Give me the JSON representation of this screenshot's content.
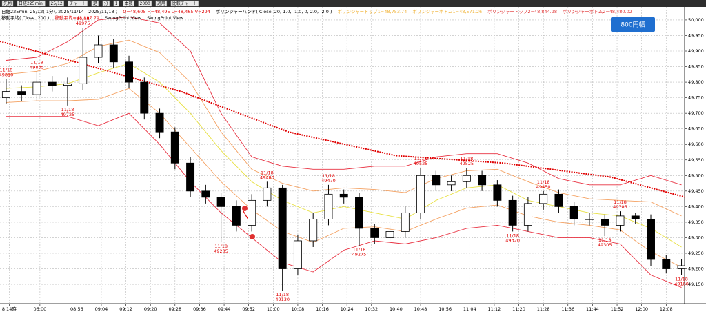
{
  "toolbar": {
    "items": [
      "先物",
      "日経225mini",
      "25/12",
      "チャート",
      "足",
      "分",
      "1",
      "本数",
      "2000",
      "適用",
      "比較チャート"
    ]
  },
  "header": {
    "line1": [
      {
        "text": "日経225mini 25/12( 1分), 2025/11/14 - 2025/11/18 )",
        "color": "#000000"
      },
      {
        "text": "O=48,605 H=48,495 L=48,465 V=294",
        "color": "#e00000"
      },
      {
        "text": "ボリンジャーバンド( Close, 20, 1.0, -1.0, 0, 2.0, -2.0 )",
        "color": "#000000"
      },
      {
        "text": "ボリンジャートップ1=48,753.74",
        "color": "#f0b030"
      },
      {
        "text": "ボリンジャーボトム1=48,571.26",
        "color": "#f0b030"
      },
      {
        "text": "ボリンジャートップ2=48,844.98",
        "color": "#e03030"
      },
      {
        "text": "ボリンジャーボトム2=48,480.02",
        "color": "#e03030"
      }
    ],
    "line2": [
      {
        "text": "移動平均( Close, 200 )",
        "color": "#000000"
      },
      {
        "text": "移動平均=48,887.79",
        "color": "#e00000"
      },
      {
        "text": "SwingPoint View",
        "color": "#000000"
      },
      {
        "text": "SwingPoint View",
        "color": "#000000"
      }
    ]
  },
  "button": "800円幅",
  "chart_data": {
    "type": "candlestick",
    "x": [
      -12,
      -7,
      -2,
      3,
      8,
      13,
      18,
      23,
      28,
      33,
      38,
      43,
      48,
      53,
      58,
      63,
      68,
      73,
      78,
      83,
      88,
      93,
      98,
      103,
      108,
      113,
      118,
      123,
      128,
      133,
      138,
      143,
      148,
      153,
      158,
      163,
      168,
      173,
      178,
      183,
      188,
      193,
      198,
      203,
      208
    ],
    "open": [
      49750,
      49770,
      49760,
      49800,
      49790,
      49795,
      49880,
      49920,
      49865,
      49800,
      49700,
      49640,
      49540,
      49450,
      49430,
      49400,
      49340,
      49420,
      49460,
      49200,
      49290,
      49360,
      49440,
      49430,
      49330,
      49300,
      49320,
      49380,
      49500,
      49470,
      49480,
      49500,
      49470,
      49420,
      49340,
      49410,
      49440,
      49400,
      49360,
      49360,
      49340,
      49370,
      49360,
      49230,
      49200
    ],
    "high": [
      49810,
      49790,
      49835,
      49820,
      49815,
      49975,
      49950,
      49940,
      49885,
      49815,
      49715,
      49655,
      49560,
      49470,
      49445,
      49420,
      49440,
      49480,
      49470,
      49310,
      49380,
      49470,
      49455,
      49445,
      49345,
      49340,
      49400,
      49525,
      49515,
      49500,
      49525,
      49515,
      49485,
      49435,
      49430,
      49450,
      49455,
      49415,
      49380,
      49375,
      49385,
      49380,
      49375,
      49245,
      49230
    ],
    "low": [
      49730,
      49740,
      49740,
      49770,
      49725,
      49775,
      49860,
      49845,
      49780,
      49680,
      49620,
      49520,
      49430,
      49410,
      49285,
      49320,
      49320,
      49400,
      49130,
      49180,
      49270,
      49340,
      49410,
      49275,
      49280,
      49290,
      49300,
      49360,
      49450,
      49450,
      49460,
      49450,
      49400,
      49320,
      49320,
      49390,
      49380,
      49340,
      49340,
      49305,
      49320,
      49345,
      49210,
      49185,
      49180
    ],
    "close": [
      49770,
      49760,
      49800,
      49790,
      49795,
      49880,
      49920,
      49865,
      49800,
      49700,
      49640,
      49540,
      49450,
      49430,
      49400,
      49340,
      49420,
      49460,
      49200,
      49290,
      49360,
      49440,
      49430,
      49330,
      49300,
      49320,
      49380,
      49500,
      49470,
      49480,
      49500,
      49470,
      49420,
      49340,
      49410,
      49440,
      49400,
      49360,
      49360,
      49340,
      49370,
      49360,
      49230,
      49200,
      49210
    ],
    "up_color": "#ffffff",
    "down_color": "#000000",
    "lines": [
      {
        "color": "#e83040",
        "style": "solid",
        "x": [
          -12,
          -2,
          8,
          18,
          28,
          38,
          48,
          58,
          68,
          78,
          88,
          98,
          108,
          118,
          128,
          138,
          148,
          158,
          168,
          178,
          188,
          198,
          208
        ],
        "values": [
          49870,
          49880,
          49930,
          50000,
          50010,
          49990,
          49900,
          49700,
          49560,
          49530,
          49520,
          49520,
          49530,
          49530,
          49560,
          49570,
          49570,
          49540,
          49490,
          49470,
          49470,
          49500,
          49470
        ]
      },
      {
        "color": "#f4a060",
        "style": "solid",
        "x": [
          -12,
          -2,
          8,
          18,
          28,
          38,
          48,
          58,
          68,
          78,
          88,
          98,
          108,
          118,
          128,
          138,
          148,
          158,
          168,
          178,
          188,
          198,
          208
        ],
        "values": [
          49825,
          49835,
          49860,
          49915,
          49935,
          49895,
          49800,
          49640,
          49520,
          49475,
          49450,
          49460,
          49455,
          49445,
          49490,
          49515,
          49520,
          49480,
          49445,
          49425,
          49420,
          49415,
          49370
        ]
      },
      {
        "color": "#e8e040",
        "style": "solid",
        "x": [
          -12,
          -2,
          8,
          18,
          28,
          38,
          48,
          58,
          68,
          78,
          88,
          98,
          108,
          118,
          128,
          138,
          148,
          158,
          168,
          178,
          188,
          198,
          208
        ],
        "values": [
          49780,
          49785,
          49795,
          49830,
          49860,
          49800,
          49700,
          49580,
          49480,
          49420,
          49380,
          49400,
          49380,
          49360,
          49420,
          49460,
          49470,
          49420,
          49400,
          49380,
          49370,
          49330,
          49270
        ]
      },
      {
        "color": "#f4a060",
        "style": "solid",
        "x": [
          -12,
          -2,
          8,
          18,
          28,
          38,
          48,
          58,
          68,
          78,
          88,
          98,
          108,
          118,
          128,
          138,
          148,
          158,
          168,
          178,
          188,
          198,
          208
        ],
        "values": [
          49735,
          49740,
          49740,
          49745,
          49780,
          49700,
          49590,
          49480,
          49390,
          49320,
          49285,
          49330,
          49335,
          49320,
          49360,
          49395,
          49405,
          49370,
          49350,
          49340,
          49325,
          49255,
          49205
        ]
      },
      {
        "color": "#e83040",
        "style": "solid",
        "x": [
          -12,
          -2,
          8,
          18,
          28,
          38,
          48,
          58,
          68,
          78,
          88,
          98,
          108,
          118,
          128,
          138,
          148,
          158,
          168,
          178,
          188,
          198,
          208
        ],
        "values": [
          49690,
          49690,
          49690,
          49660,
          49700,
          49600,
          49480,
          49380,
          49300,
          49220,
          49190,
          49260,
          49290,
          49280,
          49300,
          49330,
          49340,
          49320,
          49300,
          49300,
          49280,
          49180,
          49140
        ]
      },
      {
        "color": "#e00000",
        "style": "dashed",
        "x": [
          -14,
          15,
          45,
          80,
          115,
          150,
          185,
          209
        ],
        "values": [
          49931,
          49853,
          49770,
          49640,
          49564,
          49540,
          49495,
          49431
        ]
      }
    ],
    "annotations": [
      {
        "date": "11/18",
        "price": 49810
      },
      {
        "date": "11/18",
        "price": 49835
      },
      {
        "date": "11/18",
        "price": 49725
      },
      {
        "date": "11/18",
        "price": 49975
      },
      {
        "date": "11/18",
        "price": 49285
      },
      {
        "date": "11/18",
        "price": 49480
      },
      {
        "date": "11/18",
        "price": 49130
      },
      {
        "date": "11/18",
        "price": 49470
      },
      {
        "date": "11/18",
        "price": 49275
      },
      {
        "date": "11/18",
        "price": 49525
      },
      {
        "date": "11/18",
        "price": 49525
      },
      {
        "date": "11/18",
        "price": 49320
      },
      {
        "date": "11/18",
        "price": 49450
      },
      {
        "date": "11/18",
        "price": 49305
      },
      {
        "date": "11/18",
        "price": 49385
      },
      {
        "date": "11/18",
        "price": 49180
      }
    ],
    "annotation_color": "#e00000",
    "xlim": [
      -14,
      209
    ],
    "xticks": [
      {
        "value": -11,
        "label": "8 14時"
      },
      {
        "value": -1,
        "label": "06:00"
      },
      {
        "value": 11,
        "label": "08:56"
      },
      {
        "value": 19,
        "label": "09:04"
      },
      {
        "value": 27,
        "label": "09:12"
      },
      {
        "value": 35,
        "label": "09:20"
      },
      {
        "value": 43,
        "label": "09:28"
      },
      {
        "value": 51,
        "label": "09:36"
      },
      {
        "value": 59,
        "label": "09:44"
      },
      {
        "value": 67,
        "label": "09:52"
      },
      {
        "value": 75,
        "label": "10:00"
      },
      {
        "value": 83,
        "label": "10:08"
      },
      {
        "value": 91,
        "label": "10:16"
      },
      {
        "value": 99,
        "label": "10:24"
      },
      {
        "value": 107,
        "label": "10:32"
      },
      {
        "value": 115,
        "label": "10:40"
      },
      {
        "value": 123,
        "label": "10:48"
      },
      {
        "value": 131,
        "label": "10:56"
      },
      {
        "value": 139,
        "label": "11:04"
      },
      {
        "value": 147,
        "label": "11:12"
      },
      {
        "value": 155,
        "label": "11:20"
      },
      {
        "value": 163,
        "label": "11:28"
      },
      {
        "value": 171,
        "label": "11:36"
      },
      {
        "value": 179,
        "label": "11:44"
      },
      {
        "value": 187,
        "label": "11:52"
      },
      {
        "value": 195,
        "label": "12:00"
      },
      {
        "value": 203,
        "label": "12:08"
      }
    ],
    "ylim": [
      49088,
      50042
    ],
    "yticks": [
      {
        "value": 49150,
        "label": "49,150"
      },
      {
        "value": 49200,
        "label": "49,200"
      },
      {
        "value": 49250,
        "label": "49,250"
      },
      {
        "value": 49300,
        "label": "49,300"
      },
      {
        "value": 49350,
        "label": "49,350"
      },
      {
        "value": 49400,
        "label": "49,400"
      },
      {
        "value": 49450,
        "label": "49,450"
      },
      {
        "value": 49500,
        "label": "49,500"
      },
      {
        "value": 49550,
        "label": "49,550"
      },
      {
        "value": 49600,
        "label": "49,600"
      },
      {
        "value": 49650,
        "label": "49,650"
      },
      {
        "value": 49700,
        "label": "49,700"
      },
      {
        "value": 49750,
        "label": "49,750"
      },
      {
        "value": 49800,
        "label": "49,800"
      },
      {
        "value": 49850,
        "label": "49,850"
      },
      {
        "value": 49900,
        "label": "49,900"
      },
      {
        "value": 49950,
        "label": "49,950"
      },
      {
        "value": 50000,
        "label": "50,000"
      }
    ],
    "grid": true
  }
}
